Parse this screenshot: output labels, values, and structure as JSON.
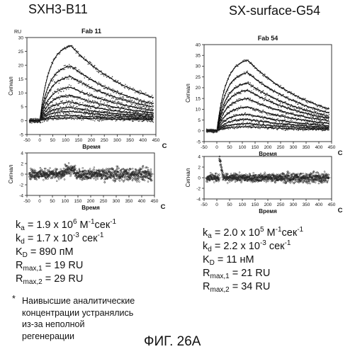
{
  "left": {
    "title": "SXH3-B11",
    "chart_data": [
      {
        "type": "line",
        "title": "Fab 11",
        "unit_label": "RU",
        "ylabel": "Сигнал",
        "xlabel": "Время",
        "x_unit": "C",
        "xlim": [
          -50,
          450
        ],
        "ylim": [
          -5,
          30
        ],
        "xticks": [
          -50,
          0,
          50,
          100,
          150,
          200,
          250,
          300,
          350,
          400,
          450
        ],
        "yticks": [
          -5,
          0,
          5,
          10,
          15,
          20,
          25,
          30
        ],
        "injection_start": 0,
        "injection_end": 120,
        "series": [
          {
            "plateau": 28.0
          },
          {
            "plateau": 20.5
          },
          {
            "plateau": 16.5
          },
          {
            "plateau": 12.5
          },
          {
            "plateau": 9.5
          },
          {
            "plateau": 7.0
          },
          {
            "plateau": 5.0
          },
          {
            "plateau": 3.5
          },
          {
            "plateau": 2.0
          },
          {
            "plateau": 1.0
          }
        ]
      },
      {
        "type": "scatter",
        "ylabel": "Сигнал",
        "xlabel": "Время",
        "x_unit": "C",
        "xlim": [
          -50,
          450
        ],
        "ylim": [
          -4,
          4
        ],
        "xticks": [
          -50,
          0,
          50,
          100,
          150,
          200,
          250,
          300,
          350,
          400,
          450
        ],
        "yticks": [
          -4,
          -2,
          0,
          2,
          4
        ],
        "residual_band": 1.3
      }
    ],
    "params": {
      "ka_sym": "k",
      "ka_sub": "a",
      "ka_val": " = 1.9 x 10",
      "ka_exp": "6",
      "ka_unit": " M",
      "ka_unit_exp": "-1",
      "ka_tail": "сек",
      "ka_tail_exp": "-1",
      "kd_sym": "k",
      "kd_sub": "d",
      "kd_val": " = 1.7 x 10",
      "kd_exp": "-3",
      "kd_unit": " сек",
      "kd_unit_exp": "-1",
      "KD_sym": "K",
      "KD_sub": "D",
      "KD_val": " = 890 пМ",
      "R1_sym": "R",
      "R1_sub": "max,1",
      "R1_val": " = 19 RU",
      "R2_sym": "R",
      "R2_sub": "max,2",
      "R2_val": " = 29 RU"
    }
  },
  "right": {
    "title": "SX-surface-G54",
    "chart_data": [
      {
        "type": "line",
        "title": "Fab 54",
        "ylabel": "Сигнал",
        "xlabel": "Время",
        "x_unit": "C",
        "xlim": [
          -50,
          450
        ],
        "ylim": [
          -5,
          40
        ],
        "xticks": [
          -50,
          0,
          50,
          100,
          150,
          200,
          250,
          300,
          350,
          400,
          450
        ],
        "yticks": [
          -5,
          0,
          5,
          10,
          15,
          20,
          25,
          30,
          35,
          40
        ],
        "injection_start": 0,
        "injection_end": 120,
        "series": [
          {
            "plateau": 34.0
          },
          {
            "plateau": 28.0
          },
          {
            "plateau": 23.0
          },
          {
            "plateau": 19.5
          },
          {
            "plateau": 15.5
          },
          {
            "plateau": 11.5
          },
          {
            "plateau": 8.0
          },
          {
            "plateau": 5.5
          },
          {
            "plateau": 3.5
          },
          {
            "plateau": 2.0
          }
        ]
      },
      {
        "type": "scatter",
        "ylabel": "Сигнал",
        "xlabel": "Время",
        "x_unit": "C",
        "xlim": [
          -50,
          450
        ],
        "ylim": [
          -4,
          4
        ],
        "xticks": [
          -50,
          0,
          50,
          100,
          150,
          200,
          250,
          300,
          350,
          400,
          450
        ],
        "yticks": [
          -4,
          -2,
          0,
          2,
          4
        ],
        "residual_band": 1.0
      }
    ],
    "params": {
      "ka_sym": "k",
      "ka_sub": "a",
      "ka_val": " = 2.0 x 10",
      "ka_exp": "5",
      "ka_unit": " M",
      "ka_unit_exp": "-1",
      "ka_tail": "сек",
      "ka_tail_exp": "-1",
      "kd_sym": "k",
      "kd_sub": "d",
      "kd_val": " = 2.2 x 10",
      "kd_exp": "-3",
      "kd_unit": " сек",
      "kd_unit_exp": "-1",
      "KD_sym": "K",
      "KD_sub": "D",
      "KD_val": " = 11 нМ",
      "R1_sym": "R",
      "R1_sub": "max,1",
      "R1_val": " = 21 RU",
      "R2_sym": "R",
      "R2_sub": "max,2",
      "R2_val": " = 34 RU"
    }
  },
  "footnote": {
    "mark": "*",
    "lines": [
      "Наивысшие аналитические",
      "концентрации устранялись",
      "из-за неполной",
      "регенерации"
    ]
  },
  "figure_label": "ФИГ. 26А"
}
